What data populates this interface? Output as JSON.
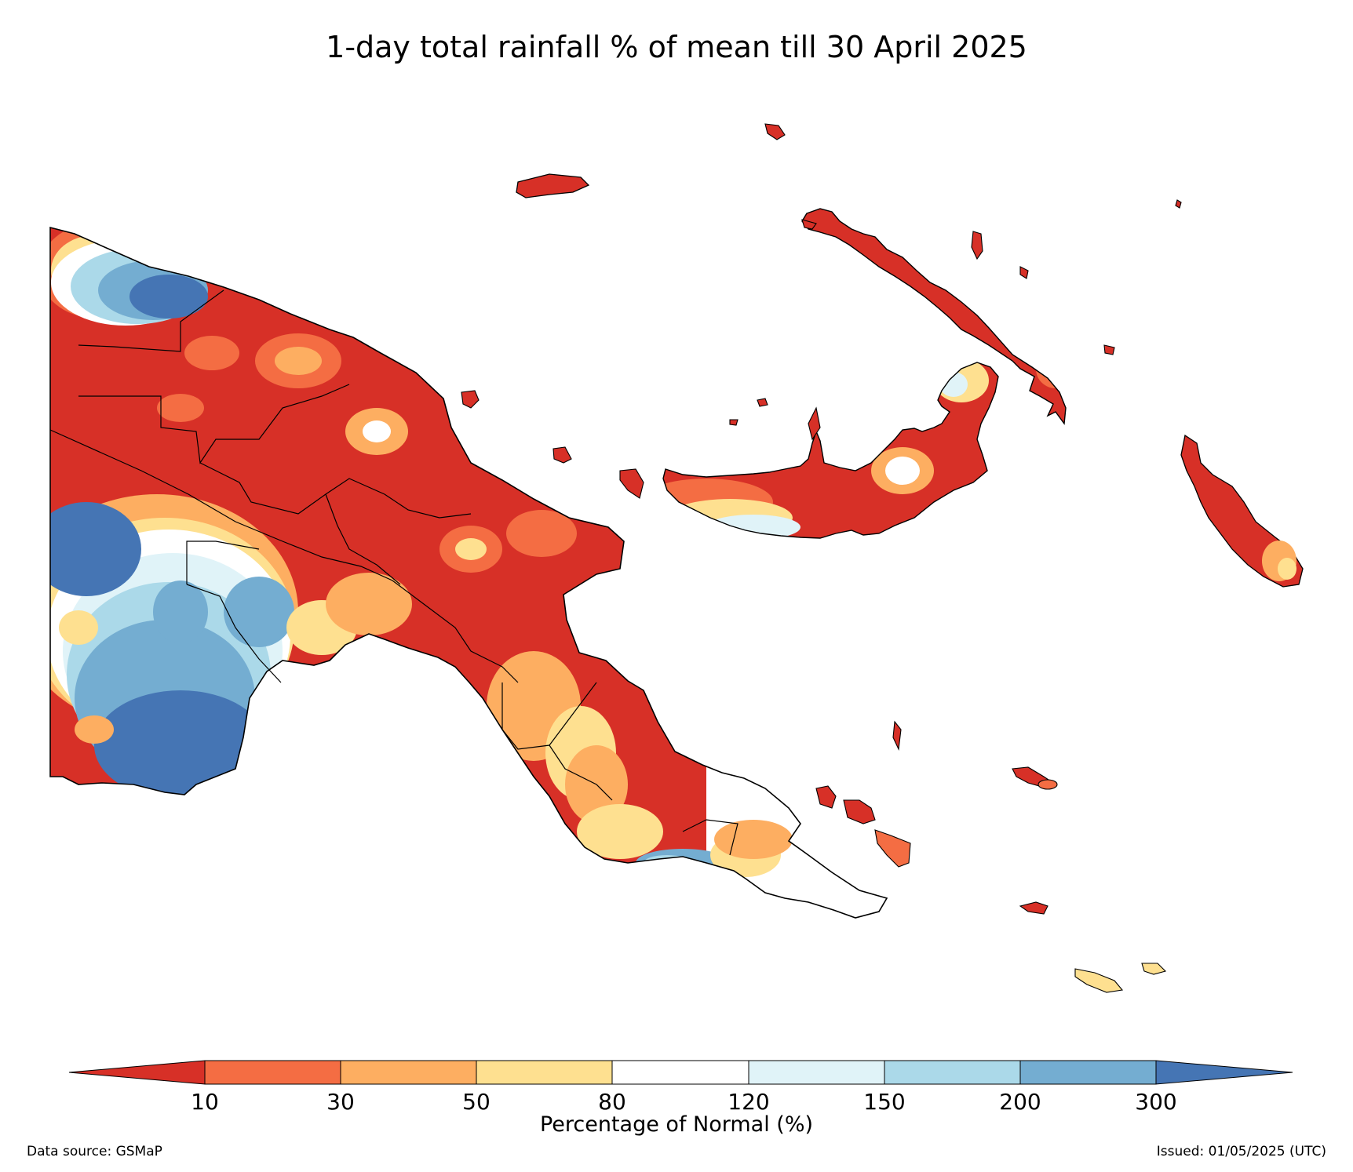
{
  "title": "1-day total rainfall % of mean till 30 April 2025",
  "colorbar": {
    "label": "Percentage of Normal (%)",
    "ticks": [
      "10",
      "30",
      "50",
      "80",
      "120",
      "150",
      "200",
      "300"
    ],
    "colors": [
      "#d73027",
      "#f46d43",
      "#fdae61",
      "#fee090",
      "#ffffff",
      "#e0f3f8",
      "#abd9e9",
      "#74add1",
      "#4575b4"
    ]
  },
  "footer": {
    "source": "Data source: GSMaP",
    "issued": "Issued: 01/05/2025 (UTC)"
  }
}
